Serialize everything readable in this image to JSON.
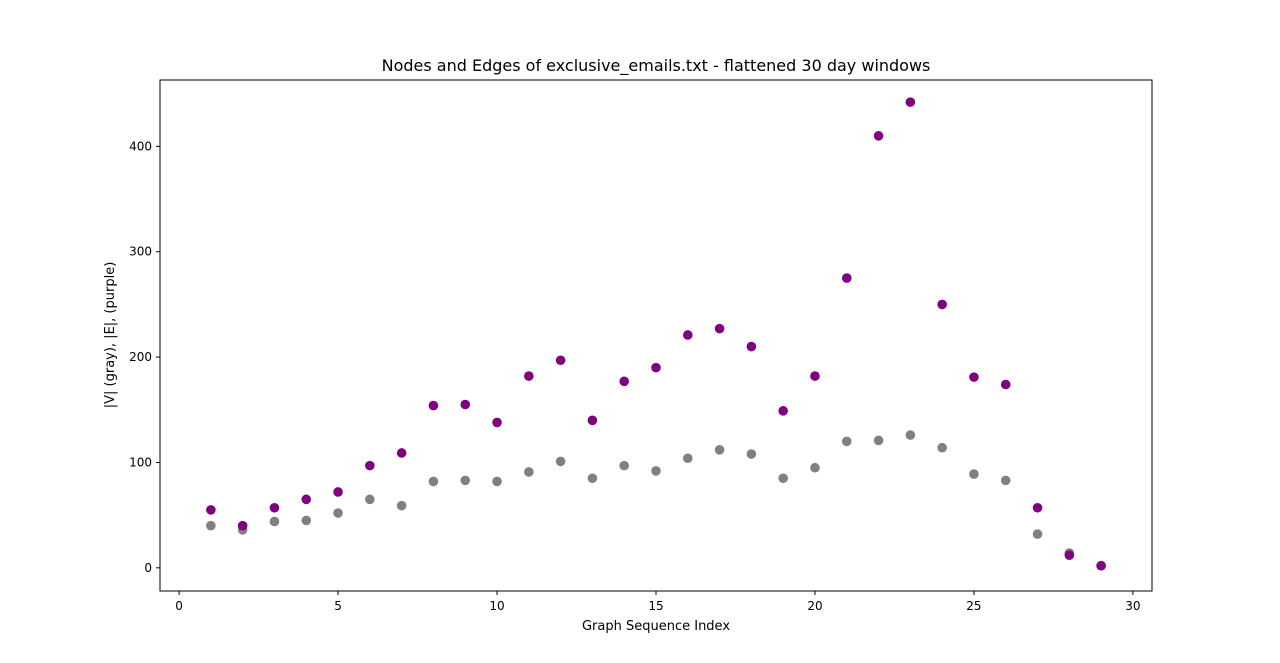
{
  "chart_data": {
    "type": "scatter",
    "title": "Nodes and Edges of exclusive_emails.txt - flattened 30 day windows",
    "xlabel": "Graph Sequence Index",
    "ylabel": "|V| (gray), |E|, (purple)",
    "xlim": [
      -0.6,
      30.6
    ],
    "ylim": [
      -22,
      463
    ],
    "xticks": [
      0,
      5,
      10,
      15,
      20,
      25,
      30
    ],
    "yticks": [
      0,
      100,
      200,
      300,
      400
    ],
    "grid": false,
    "series": [
      {
        "color": "#808080",
        "x": [
          1,
          2,
          3,
          4,
          5,
          6,
          7,
          8,
          9,
          10,
          11,
          12,
          13,
          14,
          15,
          16,
          17,
          18,
          19,
          20,
          21,
          22,
          23,
          24,
          25,
          26,
          27,
          28,
          29
        ],
        "y": [
          40,
          36,
          44,
          45,
          52,
          65,
          59,
          82,
          83,
          82,
          91,
          101,
          85,
          97,
          92,
          104,
          112,
          108,
          85,
          95,
          120,
          121,
          126,
          114,
          89,
          83,
          32,
          14,
          2
        ]
      },
      {
        "color": "#800080",
        "x": [
          1,
          2,
          3,
          4,
          5,
          6,
          7,
          8,
          9,
          10,
          11,
          12,
          13,
          14,
          15,
          16,
          17,
          18,
          19,
          20,
          21,
          22,
          23,
          24,
          25,
          26,
          27,
          28,
          29
        ],
        "y": [
          55,
          40,
          57,
          65,
          72,
          97,
          109,
          154,
          155,
          138,
          182,
          197,
          140,
          177,
          190,
          221,
          227,
          210,
          149,
          182,
          275,
          410,
          442,
          250,
          181,
          174,
          57,
          12,
          2
        ]
      }
    ]
  }
}
